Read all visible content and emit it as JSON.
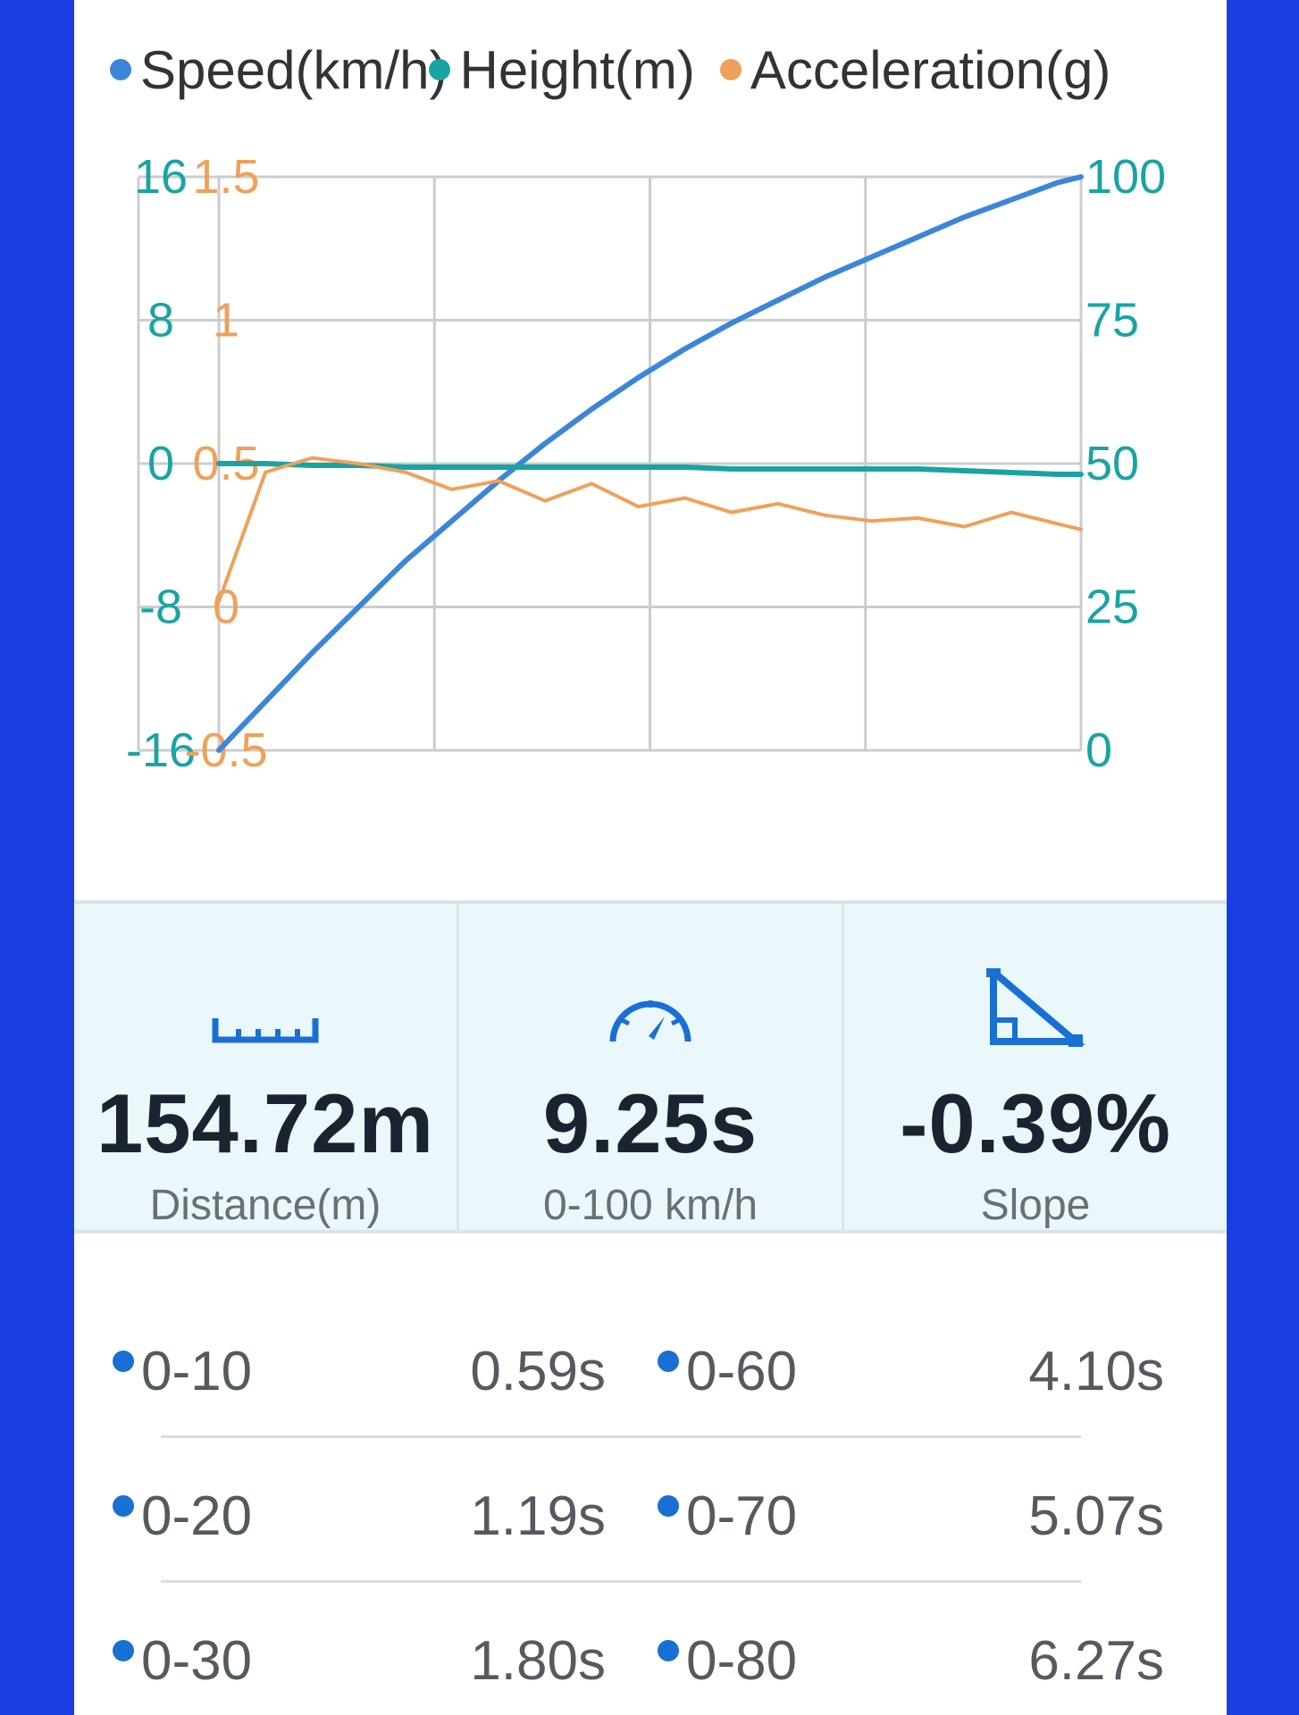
{
  "colors": {
    "speed": "#3b86d9",
    "height": "#1aa3a3",
    "acceleration": "#f0a05a",
    "grid": "#cccccc",
    "icon_blue": "#1a6fd4",
    "background_frame": "#1a3fe0"
  },
  "legend": [
    {
      "label": "Speed(km/h)",
      "color": "#3b86d9"
    },
    {
      "label": "Height(m)",
      "color": "#1aa3a3"
    },
    {
      "label": "Acceleration(g)",
      "color": "#f0a05a"
    }
  ],
  "chart_data": {
    "type": "line",
    "title": "",
    "grid": true,
    "legend_position": "top",
    "x": [
      0,
      0.5,
      1,
      1.5,
      2,
      2.5,
      3,
      3.5,
      4,
      4.5,
      5,
      5.5,
      6,
      6.5,
      7,
      7.5,
      8,
      8.5,
      9,
      9.25
    ],
    "xlim": [
      0,
      9.25
    ],
    "axes": {
      "height_left": {
        "ticks": [
          "16",
          "8",
          "0",
          "-8",
          "-16"
        ],
        "range": [
          -16,
          16
        ]
      },
      "acceleration_left": {
        "ticks": [
          "1.5",
          "1",
          "0.5",
          "0",
          "-0.5"
        ],
        "range": [
          -0.5,
          1.5
        ]
      },
      "speed_right": {
        "ticks": [
          "100",
          "75",
          "50",
          "25",
          "0"
        ],
        "range": [
          0,
          100
        ]
      }
    },
    "series": [
      {
        "name": "Speed(km/h)",
        "axis": "speed_right",
        "color": "#3b86d9",
        "values": [
          0,
          8.5,
          17,
          25,
          33,
          40,
          47,
          53.5,
          59.5,
          65,
          70,
          74.5,
          78.5,
          82.5,
          86,
          89.5,
          93,
          96,
          99,
          100
        ]
      },
      {
        "name": "Height(m)",
        "axis": "height_left",
        "color": "#1aa3a3",
        "values": [
          0,
          0,
          -0.1,
          -0.1,
          -0.2,
          -0.2,
          -0.2,
          -0.2,
          -0.2,
          -0.2,
          -0.2,
          -0.3,
          -0.3,
          -0.3,
          -0.3,
          -0.3,
          -0.4,
          -0.5,
          -0.6,
          -0.6
        ]
      },
      {
        "name": "Acceleration(g)",
        "axis": "acceleration_left",
        "color": "#f0a05a",
        "values": [
          0.02,
          0.47,
          0.52,
          0.5,
          0.47,
          0.41,
          0.44,
          0.37,
          0.43,
          0.35,
          0.38,
          0.33,
          0.36,
          0.32,
          0.3,
          0.31,
          0.28,
          0.33,
          0.29,
          0.27
        ]
      }
    ]
  },
  "stats": [
    {
      "icon": "ruler-icon",
      "value": "154.72m",
      "label": "Distance(m)"
    },
    {
      "icon": "speedometer-icon",
      "value": "9.25s",
      "label": "0-100 km/h"
    },
    {
      "icon": "slope-icon",
      "value": "-0.39%",
      "label": "Slope"
    }
  ],
  "splits": [
    {
      "left": {
        "label": "0-10",
        "time": "0.59s"
      },
      "right": {
        "label": "0-60",
        "time": "4.10s"
      }
    },
    {
      "left": {
        "label": "0-20",
        "time": "1.19s"
      },
      "right": {
        "label": "0-70",
        "time": "5.07s"
      }
    },
    {
      "left": {
        "label": "0-30",
        "time": "1.80s"
      },
      "right": {
        "label": "0-80",
        "time": "6.27s"
      }
    }
  ]
}
